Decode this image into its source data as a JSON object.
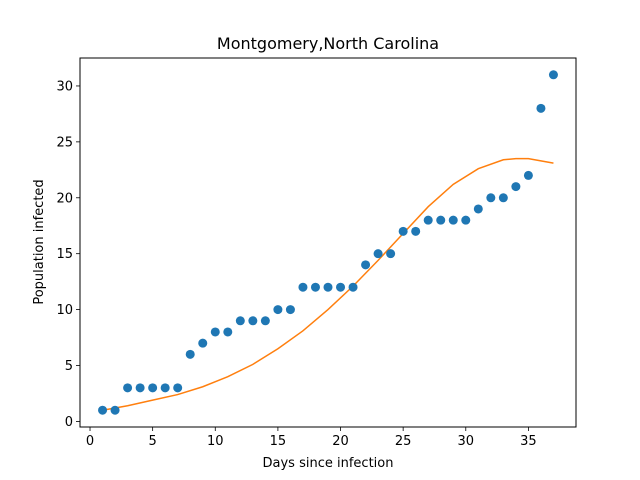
{
  "chart_data": {
    "type": "scatter",
    "title": "Montgomery,North Carolina",
    "xlabel": "Days since infection",
    "ylabel": "Population infected",
    "xlim": [
      -0.8,
      38.8
    ],
    "ylim": [
      -0.5,
      32.5
    ],
    "xticks": [
      0,
      5,
      10,
      15,
      20,
      25,
      30,
      35
    ],
    "yticks": [
      0,
      5,
      10,
      15,
      20,
      25,
      30
    ],
    "grid": false,
    "series": [
      {
        "kind": "scatter",
        "color": "#1f77b4",
        "x": [
          1,
          2,
          3,
          4,
          5,
          6,
          7,
          8,
          9,
          10,
          11,
          12,
          13,
          14,
          15,
          16,
          17,
          18,
          19,
          20,
          21,
          22,
          23,
          24,
          25,
          26,
          27,
          28,
          29,
          30,
          31,
          32,
          33,
          34,
          35,
          36,
          37
        ],
        "y": [
          1,
          1,
          3,
          3,
          3,
          3,
          3,
          6,
          7,
          8,
          8,
          9,
          9,
          9,
          10,
          10,
          12,
          12,
          12,
          12,
          12,
          14,
          15,
          15,
          17,
          17,
          18,
          18,
          18,
          18,
          19,
          20,
          20,
          21,
          22,
          28,
          31
        ]
      },
      {
        "kind": "line",
        "color": "#ff7f0e",
        "x": [
          1,
          3,
          5,
          7,
          9,
          11,
          13,
          15,
          17,
          19,
          21,
          23,
          25,
          27,
          29,
          31,
          33,
          34,
          35,
          36,
          37
        ],
        "y": [
          1.0,
          1.4,
          1.9,
          2.4,
          3.1,
          4.0,
          5.1,
          6.5,
          8.1,
          10.0,
          12.1,
          14.4,
          16.8,
          19.2,
          21.2,
          22.6,
          23.4,
          23.5,
          23.5,
          23.3,
          23.1
        ]
      }
    ]
  }
}
